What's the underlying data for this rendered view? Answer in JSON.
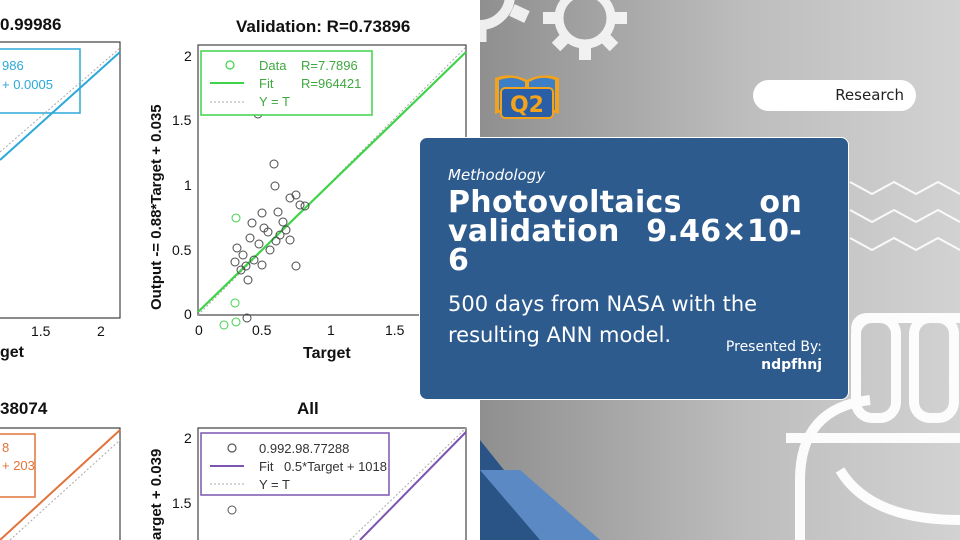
{
  "slide": {
    "eyebrow": "Methodology",
    "title": "Photovoltaics on validation 9.46×10-6",
    "subtitle": "500 days from NASA with the resulting ANN model.",
    "presenter_label": "Presented By:",
    "presenter_name": "ndpfhnj",
    "tag": "Research",
    "logo_text": "Q2",
    "colors": {
      "card": "#2e5b8d",
      "accent_dark": "#2a5486",
      "accent_light": "#5b89c4"
    }
  },
  "plots": {
    "top_left": {
      "title_fragment": "0.99986",
      "legend": [
        "986",
        "+ 0.0005"
      ],
      "tick": [
        "1.5",
        "2"
      ],
      "xlabel_fragment": "get",
      "color": "#2ba9d8"
    },
    "top_right": {
      "title": "Validation: R=0.73896",
      "ylabel": "Output -= 0.88*Target + 0.035",
      "xlabel": "Target",
      "yticks": [
        "0",
        "0.5",
        "1",
        "1.5",
        "2"
      ],
      "xticks": [
        "0",
        "0.5",
        "1",
        "1.5"
      ],
      "legend": [
        {
          "label": "Data",
          "value": "R=7.7896"
        },
        {
          "label": "Fit",
          "value": "R=964421"
        },
        {
          "label": "Y = T",
          "value": ""
        }
      ],
      "color": "#3fd34a"
    },
    "bottom_left": {
      "title_fragment": "38074",
      "legend": [
        "8",
        "+ 203"
      ],
      "color": "#e2733a"
    },
    "bottom_right": {
      "title": "All",
      "ylabel_fragment": "arget + 0.039",
      "yticks": [
        "2",
        "1.5"
      ],
      "legend": [
        {
          "label": "",
          "value": "0.992.98.77288"
        },
        {
          "label": "Fit",
          "value": "0.5*Target + 1018"
        },
        {
          "label": "Y = T",
          "value": ""
        }
      ],
      "color": "#7b55b0"
    }
  }
}
